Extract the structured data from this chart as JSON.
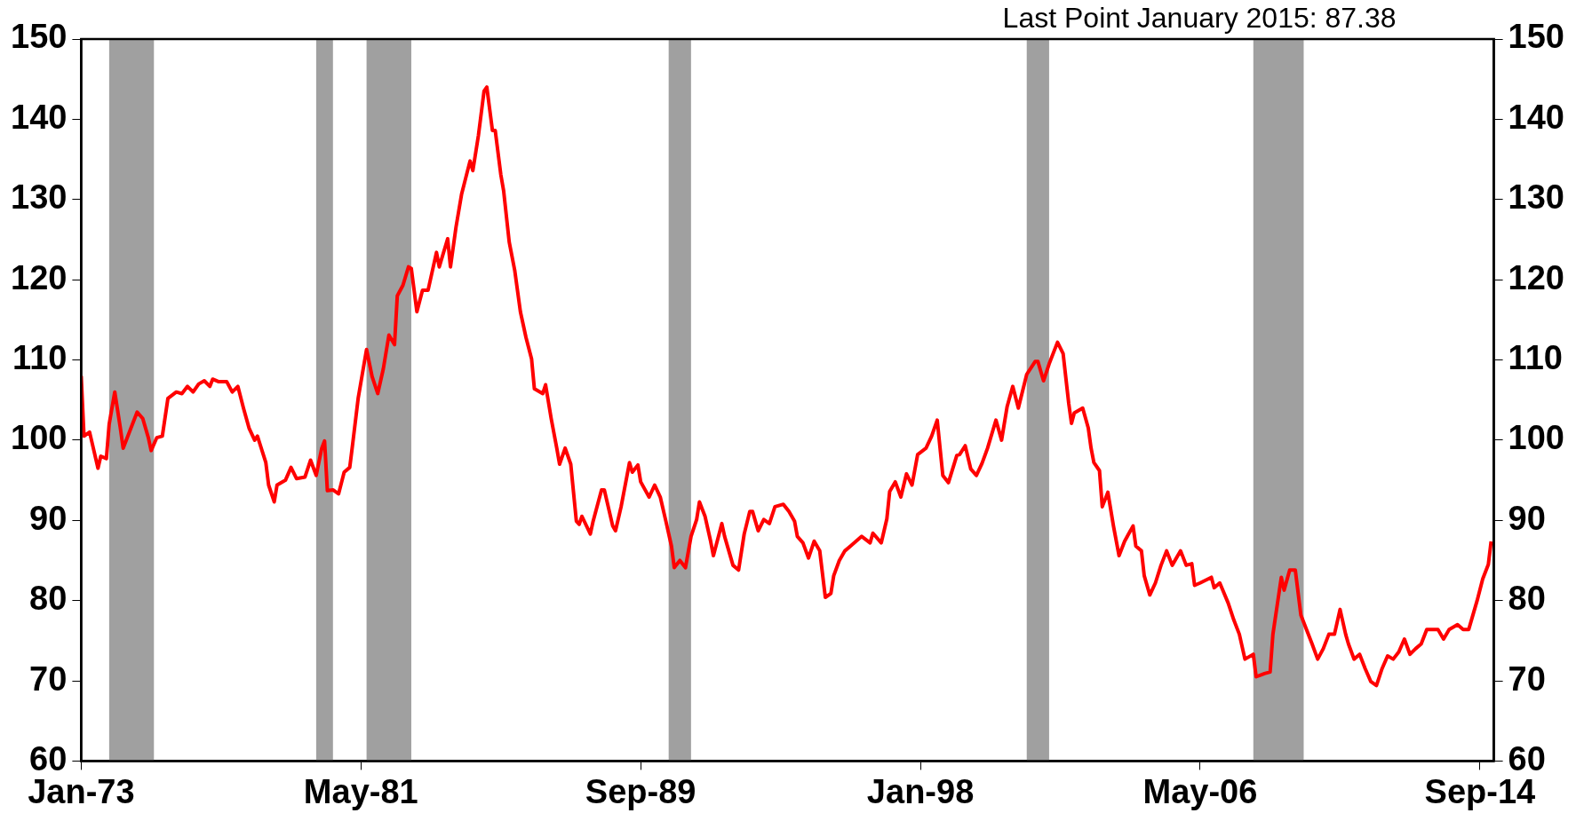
{
  "chart_data": {
    "type": "line",
    "annotations": [
      "Last Point January 2015: 87.38"
    ],
    "x": [
      "1973-01",
      "1973-02",
      "1973-04",
      "1973-07",
      "1973-08",
      "1973-10",
      "1973-11",
      "1974-01",
      "1974-03",
      "1974-04",
      "1974-09",
      "1974-11",
      "1975-01",
      "1975-02",
      "1975-04",
      "1975-06",
      "1975-08",
      "1975-11",
      "1976-01",
      "1976-03",
      "1976-05",
      "1976-07",
      "1976-09",
      "1976-11",
      "1976-12",
      "1977-02",
      "1977-05",
      "1977-07",
      "1977-09",
      "1977-11",
      "1978-01",
      "1978-03",
      "1978-04",
      "1978-07",
      "1978-08",
      "1978-10",
      "1978-11",
      "1979-02",
      "1979-04",
      "1979-06",
      "1979-09",
      "1979-11",
      "1980-01",
      "1980-03",
      "1980-04",
      "1980-05",
      "1980-07",
      "1980-09",
      "1980-11",
      "1981-01",
      "1981-02",
      "1981-04",
      "1981-07",
      "1981-09",
      "1981-11",
      "1982-01",
      "1982-03",
      "1982-05",
      "1982-06",
      "1982-08",
      "1982-10",
      "1982-11",
      "1983-01",
      "1983-03",
      "1983-05",
      "1983-08",
      "1983-09",
      "1983-12",
      "1984-01",
      "1984-03",
      "1984-05",
      "1984-08",
      "1984-09",
      "1984-11",
      "1985-01",
      "1985-02",
      "1985-04",
      "1985-05",
      "1985-07",
      "1985-08",
      "1985-10",
      "1985-12",
      "1986-02",
      "1986-04",
      "1986-06",
      "1986-07",
      "1986-10",
      "1986-11",
      "1987-01",
      "1987-03",
      "1987-04",
      "1987-06",
      "1987-08",
      "1987-10",
      "1987-11",
      "1987-12",
      "1988-03",
      "1988-04",
      "1988-07",
      "1988-08",
      "1988-11",
      "1988-12",
      "1989-02",
      "1989-05",
      "1989-06",
      "1989-08",
      "1989-09",
      "1989-12",
      "1990-02",
      "1990-04",
      "1990-06",
      "1990-08",
      "1990-09",
      "1990-11",
      "1991-01",
      "1991-03",
      "1991-05",
      "1991-06",
      "1991-08",
      "1991-10",
      "1991-11",
      "1992-02",
      "1992-03",
      "1992-06",
      "1992-08",
      "1992-10",
      "1992-12",
      "1993-01",
      "1993-03",
      "1993-05",
      "1993-07",
      "1993-09",
      "1993-12",
      "1994-02",
      "1994-04",
      "1994-05",
      "1994-07",
      "1994-09",
      "1994-11",
      "1995-01",
      "1995-03",
      "1995-05",
      "1995-06",
      "1995-08",
      "1995-10",
      "1995-12",
      "1996-02",
      "1996-04",
      "1996-07",
      "1996-08",
      "1996-11",
      "1997-01",
      "1997-02",
      "1997-04",
      "1997-06",
      "1997-08",
      "1997-10",
      "1997-12",
      "1998-03",
      "1998-05",
      "1998-07",
      "1998-09",
      "1998-11",
      "1999-02",
      "1999-03",
      "1999-05",
      "1999-07",
      "1999-09",
      "1999-11",
      "2000-01",
      "2000-04",
      "2000-06",
      "2000-08",
      "2000-10",
      "2000-12",
      "2001-03",
      "2001-06",
      "2001-07",
      "2001-09",
      "2001-11",
      "2002-02",
      "2002-04",
      "2002-06",
      "2002-07",
      "2002-08",
      "2002-11",
      "2003-01",
      "2003-02",
      "2003-03",
      "2003-05",
      "2003-06",
      "2003-08",
      "2003-10",
      "2003-12",
      "2004-02",
      "2004-05",
      "2004-06",
      "2004-08",
      "2004-09",
      "2004-11",
      "2005-01",
      "2005-03",
      "2005-05",
      "2005-07",
      "2005-10",
      "2005-12",
      "2006-02",
      "2006-03",
      "2006-05",
      "2006-09",
      "2006-10",
      "2006-12",
      "2007-03",
      "2007-05",
      "2007-07",
      "2007-09",
      "2007-12",
      "2008-01",
      "2008-04",
      "2008-06",
      "2008-07",
      "2008-10",
      "2008-11",
      "2009-01",
      "2009-03",
      "2009-05",
      "2009-07",
      "2009-09",
      "2009-11",
      "2010-01",
      "2010-03",
      "2010-05",
      "2010-07",
      "2010-09",
      "2010-10",
      "2010-12",
      "2011-02",
      "2011-04",
      "2011-06",
      "2011-08",
      "2011-10",
      "2011-12",
      "2012-02",
      "2012-04",
      "2012-06",
      "2012-08",
      "2012-10",
      "2012-12",
      "2013-02",
      "2013-04",
      "2013-06",
      "2013-08",
      "2013-10",
      "2014-01",
      "2014-03",
      "2014-05",
      "2014-08",
      "2014-10",
      "2014-12",
      "2015-01"
    ],
    "series": [
      {
        "color": "#ff0000",
        "values": [
          108,
          100.5,
          101,
          96.5,
          98,
          97.7,
          102,
          106,
          101.5,
          99,
          103.5,
          102.7,
          100.3,
          98.7,
          100.3,
          100.5,
          105.2,
          106,
          105.8,
          106.7,
          106,
          107,
          107.4,
          106.7,
          107.6,
          107.3,
          107.3,
          106,
          106.7,
          104,
          101.5,
          100,
          100.5,
          97.2,
          94.4,
          92.3,
          94.4,
          95,
          96.6,
          95.2,
          95.4,
          97.5,
          95.6,
          99,
          99.9,
          93.7,
          93.8,
          93.3,
          96,
          96.6,
          99.4,
          105.2,
          111.3,
          107.9,
          105.8,
          108.9,
          113.1,
          111.9,
          118,
          119.3,
          121.6,
          121.4,
          116,
          118.7,
          118.7,
          123.4,
          121.6,
          125.1,
          121.6,
          126.6,
          130.7,
          134.8,
          133.6,
          138,
          143.5,
          144,
          138.6,
          138.6,
          133.1,
          131.1,
          124.7,
          121.1,
          116,
          112.8,
          110.1,
          106.4,
          105.8,
          106.9,
          102.7,
          99,
          97,
          99,
          97,
          89.9,
          89.5,
          90.5,
          88.3,
          89.9,
          93.8,
          93.8,
          89.3,
          88.7,
          91.7,
          97.2,
          96,
          96.9,
          94.8,
          92.9,
          94.4,
          92.9,
          89.9,
          86.8,
          84.1,
          85,
          84.1,
          88,
          90.1,
          92.3,
          90.5,
          87.4,
          85.6,
          89.6,
          88,
          84.4,
          83.8,
          88.3,
          91.1,
          91.1,
          88.7,
          90.1,
          89.6,
          91.7,
          92,
          91.1,
          89.9,
          88,
          87.2,
          85.3,
          87.4,
          86.2,
          80.4,
          80.9,
          83.1,
          85,
          86.2,
          86.8,
          87.4,
          88,
          87.2,
          88.4,
          87.2,
          90.2,
          93.6,
          94.8,
          92.9,
          95.8,
          94.4,
          98.2,
          99,
          100.5,
          102.5,
          95.6,
          94.7,
          98.1,
          98.2,
          99.3,
          96.4,
          95.6,
          97.1,
          99,
          102.5,
          100,
          104.2,
          106.7,
          104,
          108.2,
          109.8,
          109.8,
          107.4,
          109.5,
          112.2,
          110.8,
          104.6,
          102.1,
          103.4,
          104,
          101.5,
          99,
          97.2,
          96.2,
          91.7,
          93.5,
          89.3,
          85.6,
          87.4,
          89.3,
          86.8,
          86.2,
          83.1,
          80.7,
          82.2,
          84.4,
          86.2,
          84.4,
          86.2,
          84.4,
          84.6,
          81.9,
          82.2,
          82.9,
          81.6,
          82.2,
          79.7,
          77.6,
          75.8,
          72.7,
          73.3,
          70.5,
          70.9,
          71.1,
          75.8,
          82.9,
          81.3,
          83.8,
          83.8,
          78.2,
          76.4,
          74.6,
          72.7,
          74,
          75.8,
          75.8,
          78.9,
          75.8,
          74.6,
          72.7,
          73.3,
          71.5,
          69.9,
          69.4,
          71.5,
          73.1,
          72.7,
          73.6,
          75.2,
          73.3,
          74,
          74.6,
          76.4,
          76.4,
          76.4,
          75.2,
          76.4,
          77,
          76.4,
          76.4,
          80,
          82.7,
          84.5,
          87.38
        ]
      }
    ],
    "xlim": [
      "1973-01",
      "2015-02"
    ],
    "xticks": [
      {
        "value": "1973-01",
        "label": "Jan-73"
      },
      {
        "value": "1981-05",
        "label": "May-81"
      },
      {
        "value": "1989-09",
        "label": "Sep-89"
      },
      {
        "value": "1998-01",
        "label": "Jan-98"
      },
      {
        "value": "2006-05",
        "label": "May-06"
      },
      {
        "value": "2014-09",
        "label": "Sep-14"
      }
    ],
    "ylim": [
      60,
      150
    ],
    "yticks": [
      60,
      70,
      80,
      90,
      100,
      110,
      120,
      130,
      140,
      150
    ],
    "y2lim": [
      60,
      150
    ],
    "y2ticks": [
      60,
      70,
      80,
      90,
      100,
      110,
      120,
      130,
      140,
      150
    ],
    "bands": [
      {
        "axis": "x",
        "from": "1973-11",
        "to": "1975-03",
        "color": "#a0a0a0"
      },
      {
        "axis": "x",
        "from": "1980-01",
        "to": "1980-07",
        "color": "#a0a0a0"
      },
      {
        "axis": "x",
        "from": "1981-07",
        "to": "1982-11",
        "color": "#a0a0a0"
      },
      {
        "axis": "x",
        "from": "1990-07",
        "to": "1991-03",
        "color": "#a0a0a0"
      },
      {
        "axis": "x",
        "from": "2001-03",
        "to": "2001-11",
        "color": "#a0a0a0"
      },
      {
        "axis": "x",
        "from": "2007-12",
        "to": "2009-06",
        "color": "#a0a0a0"
      }
    ],
    "grid": false,
    "legend": false,
    "marker": "none",
    "line_style": "solid"
  }
}
